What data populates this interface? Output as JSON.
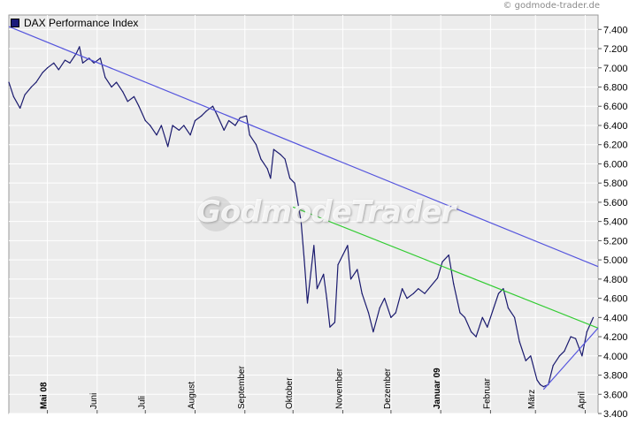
{
  "copyright": "© godmode-trader.de",
  "watermark": "GodmodeTrader",
  "chart_data": {
    "type": "line",
    "legend": [
      "DAX Performance Index"
    ],
    "series_color": "#1a1a6e",
    "y_ticks": [
      3400,
      3600,
      3800,
      4000,
      4200,
      4400,
      4600,
      4800,
      5000,
      5200,
      5400,
      5600,
      5800,
      6000,
      6200,
      6400,
      6600,
      6800,
      7000,
      7200,
      7400
    ],
    "y_tick_labels": [
      "3.400",
      "3.600",
      "3.800",
      "4.000",
      "4.200",
      "4.400",
      "4.600",
      "4.800",
      "5.000",
      "5.200",
      "5.400",
      "5.600",
      "5.800",
      "6.000",
      "6.200",
      "6.400",
      "6.600",
      "6.800",
      "7.000",
      "7.200",
      "7.400"
    ],
    "ylim": [
      3400,
      7550
    ],
    "x_range": [
      "2008-04-07",
      "2009-04-09"
    ],
    "x_ticks": [
      {
        "date": "2008-05-01",
        "label": "Mai 08",
        "bold": true
      },
      {
        "date": "2008-06-01",
        "label": "Juni",
        "bold": false
      },
      {
        "date": "2008-07-01",
        "label": "Juli",
        "bold": false
      },
      {
        "date": "2008-08-01",
        "label": "August",
        "bold": false
      },
      {
        "date": "2008-09-01",
        "label": "September",
        "bold": false
      },
      {
        "date": "2008-10-01",
        "label": "Oktober",
        "bold": false
      },
      {
        "date": "2008-11-01",
        "label": "November",
        "bold": false
      },
      {
        "date": "2008-12-01",
        "label": "Dezember",
        "bold": false
      },
      {
        "date": "2009-01-01",
        "label": "Januar 09",
        "bold": true
      },
      {
        "date": "2009-02-01",
        "label": "Februar",
        "bold": false
      },
      {
        "date": "2009-03-01",
        "label": "März",
        "bold": false
      },
      {
        "date": "2009-04-01",
        "label": "April",
        "bold": false
      }
    ],
    "series": [
      {
        "name": "DAX Performance Index",
        "points": [
          [
            "2008-04-07",
            6850
          ],
          [
            "2008-04-10",
            6700
          ],
          [
            "2008-04-14",
            6580
          ],
          [
            "2008-04-17",
            6720
          ],
          [
            "2008-04-21",
            6800
          ],
          [
            "2008-04-24",
            6850
          ],
          [
            "2008-04-28",
            6950
          ],
          [
            "2008-05-01",
            7000
          ],
          [
            "2008-05-05",
            7050
          ],
          [
            "2008-05-08",
            6980
          ],
          [
            "2008-05-12",
            7080
          ],
          [
            "2008-05-15",
            7050
          ],
          [
            "2008-05-19",
            7150
          ],
          [
            "2008-05-21",
            7220
          ],
          [
            "2008-05-23",
            7050
          ],
          [
            "2008-05-27",
            7100
          ],
          [
            "2008-05-30",
            7050
          ],
          [
            "2008-06-03",
            7100
          ],
          [
            "2008-06-06",
            6900
          ],
          [
            "2008-06-10",
            6800
          ],
          [
            "2008-06-13",
            6850
          ],
          [
            "2008-06-17",
            6750
          ],
          [
            "2008-06-20",
            6650
          ],
          [
            "2008-06-24",
            6700
          ],
          [
            "2008-06-27",
            6600
          ],
          [
            "2008-07-01",
            6450
          ],
          [
            "2008-07-04",
            6400
          ],
          [
            "2008-07-08",
            6300
          ],
          [
            "2008-07-11",
            6400
          ],
          [
            "2008-07-15",
            6180
          ],
          [
            "2008-07-18",
            6400
          ],
          [
            "2008-07-22",
            6350
          ],
          [
            "2008-07-25",
            6400
          ],
          [
            "2008-07-29",
            6300
          ],
          [
            "2008-08-01",
            6450
          ],
          [
            "2008-08-05",
            6500
          ],
          [
            "2008-08-08",
            6550
          ],
          [
            "2008-08-12",
            6600
          ],
          [
            "2008-08-15",
            6500
          ],
          [
            "2008-08-19",
            6350
          ],
          [
            "2008-08-22",
            6450
          ],
          [
            "2008-08-26",
            6400
          ],
          [
            "2008-08-29",
            6480
          ],
          [
            "2008-09-02",
            6500
          ],
          [
            "2008-09-04",
            6300
          ],
          [
            "2008-09-08",
            6200
          ],
          [
            "2008-09-11",
            6050
          ],
          [
            "2008-09-15",
            5950
          ],
          [
            "2008-09-17",
            5850
          ],
          [
            "2008-09-19",
            6150
          ],
          [
            "2008-09-23",
            6100
          ],
          [
            "2008-09-26",
            6050
          ],
          [
            "2008-09-29",
            5850
          ],
          [
            "2008-10-02",
            5800
          ],
          [
            "2008-10-06",
            5400
          ],
          [
            "2008-10-08",
            5000
          ],
          [
            "2008-10-10",
            4550
          ],
          [
            "2008-10-14",
            5150
          ],
          [
            "2008-10-16",
            4700
          ],
          [
            "2008-10-20",
            4850
          ],
          [
            "2008-10-22",
            4600
          ],
          [
            "2008-10-24",
            4300
          ],
          [
            "2008-10-27",
            4350
          ],
          [
            "2008-10-29",
            4950
          ],
          [
            "2008-11-04",
            5150
          ],
          [
            "2008-11-06",
            4800
          ],
          [
            "2008-11-10",
            4900
          ],
          [
            "2008-11-13",
            4650
          ],
          [
            "2008-11-17",
            4450
          ],
          [
            "2008-11-20",
            4250
          ],
          [
            "2008-11-24",
            4500
          ],
          [
            "2008-11-27",
            4600
          ],
          [
            "2008-12-01",
            4400
          ],
          [
            "2008-12-04",
            4450
          ],
          [
            "2008-12-08",
            4700
          ],
          [
            "2008-12-11",
            4600
          ],
          [
            "2008-12-15",
            4650
          ],
          [
            "2008-12-18",
            4700
          ],
          [
            "2008-12-22",
            4650
          ],
          [
            "2008-12-30",
            4810
          ],
          [
            "2009-01-02",
            4980
          ],
          [
            "2009-01-06",
            5050
          ],
          [
            "2009-01-09",
            4750
          ],
          [
            "2009-01-13",
            4450
          ],
          [
            "2009-01-16",
            4400
          ],
          [
            "2009-01-20",
            4250
          ],
          [
            "2009-01-23",
            4200
          ],
          [
            "2009-01-27",
            4400
          ],
          [
            "2009-01-30",
            4300
          ],
          [
            "2009-02-03",
            4500
          ],
          [
            "2009-02-06",
            4650
          ],
          [
            "2009-02-09",
            4700
          ],
          [
            "2009-02-12",
            4500
          ],
          [
            "2009-02-16",
            4400
          ],
          [
            "2009-02-19",
            4150
          ],
          [
            "2009-02-23",
            3950
          ],
          [
            "2009-02-26",
            4000
          ],
          [
            "2009-03-02",
            3750
          ],
          [
            "2009-03-04",
            3700
          ],
          [
            "2009-03-06",
            3680
          ],
          [
            "2009-03-09",
            3700
          ],
          [
            "2009-03-12",
            3900
          ],
          [
            "2009-03-16",
            4000
          ],
          [
            "2009-03-19",
            4050
          ],
          [
            "2009-03-23",
            4200
          ],
          [
            "2009-03-26",
            4180
          ],
          [
            "2009-03-30",
            4000
          ],
          [
            "2009-04-02",
            4250
          ],
          [
            "2009-04-06",
            4400
          ]
        ]
      }
    ],
    "trendlines": [
      {
        "color": "#5555dd",
        "from": [
          "2008-04-07",
          7430
        ],
        "to": [
          "2009-04-09",
          4930
        ]
      },
      {
        "color": "#33cc33",
        "from": [
          "2008-10-01",
          5550
        ],
        "to": [
          "2009-04-09",
          4290
        ]
      },
      {
        "color": "#5555dd",
        "from": [
          "2009-03-06",
          3650
        ],
        "to": [
          "2009-04-09",
          4290
        ]
      }
    ]
  }
}
